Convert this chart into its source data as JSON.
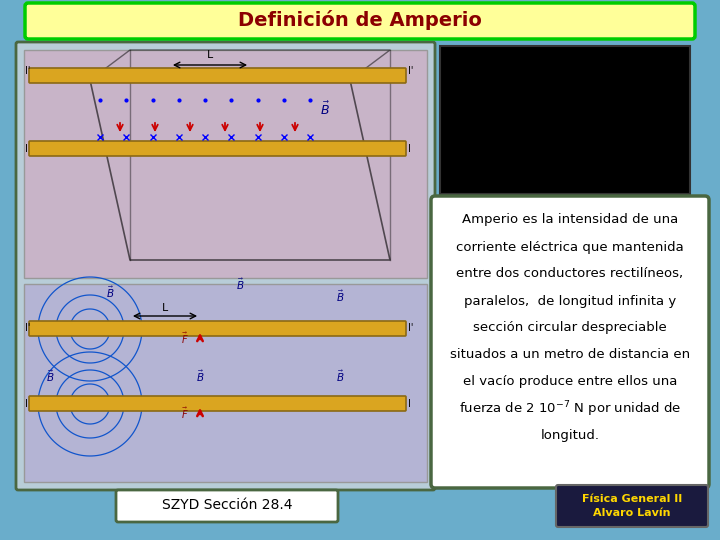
{
  "title": "Definición de Amperio",
  "title_color": "#8B0000",
  "title_bg_color": "#FFFF99",
  "title_border_color": "#00CC00",
  "bg_color": "#6AADCB",
  "main_text": [
    "Amperio es la intensidad de una",
    "corriente eléctrica que mantenida",
    "entre dos conductores rectilíneos,",
    "paralelos,  de longitud infinita y",
    "sección circular despreciable",
    "situados a un metro de distancia en",
    "el vacío produce entre ellos una",
    "fuerza de 2 10$^{-7}$ N por unidad de",
    "longitud."
  ],
  "text_box_bg": "#FFFFFF",
  "text_box_border": "#4A6741",
  "left_panel_bg": "#B8CDD8",
  "left_panel_border": "#4A6741",
  "upper_diag_bg": "#C8B4C8",
  "lower_diag_bg": "#B4B4D4",
  "rod_color": "#DAA520",
  "rod_edge": "#8B6914",
  "arrow_color_red": "#CC0000",
  "field_color": "#1155CC",
  "black_box": "#000000",
  "bottom_left_text": "SZYD Sección 28.4",
  "bottom_left_bg": "#FFFFFF",
  "bottom_right_text": "Física General II\nAlvaro Lavín",
  "bottom_right_bg": "#1a1a3e",
  "bottom_right_fg": "#FFD700"
}
